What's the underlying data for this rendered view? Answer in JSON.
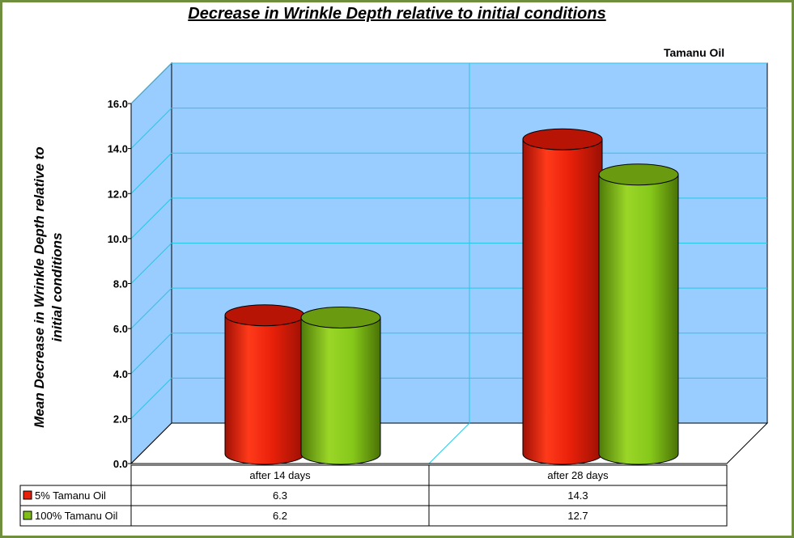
{
  "chart_data": {
    "type": "bar",
    "title": "Decrease in Wrinkle Depth relative to initial conditions",
    "corner_label": "Tamanu Oil",
    "ylabel": "Mean Decrease in Wrinkle Depth relative to initial conditions",
    "categories": [
      "after 14 days",
      "after 28 days"
    ],
    "series": [
      {
        "name": "5% Tamanu Oil",
        "values": [
          6.3,
          14.3
        ],
        "color": "#e8200a"
      },
      {
        "name": "100% Tamanu Oil",
        "values": [
          6.2,
          12.7
        ],
        "color": "#7fbf14"
      }
    ],
    "ylim": [
      0,
      16
    ],
    "yticks": [
      "0.0",
      "2.0",
      "4.0",
      "6.0",
      "8.0",
      "10.0",
      "12.0",
      "14.0",
      "16.0"
    ],
    "grid": true,
    "legend": "data table below chart",
    "data_table": [
      [
        "6.3",
        "14.3"
      ],
      [
        "6.2",
        "12.7"
      ]
    ],
    "colors": {
      "wall": "#99ccff",
      "grid": "#29c4e8",
      "border": "#6f8f3f"
    }
  }
}
